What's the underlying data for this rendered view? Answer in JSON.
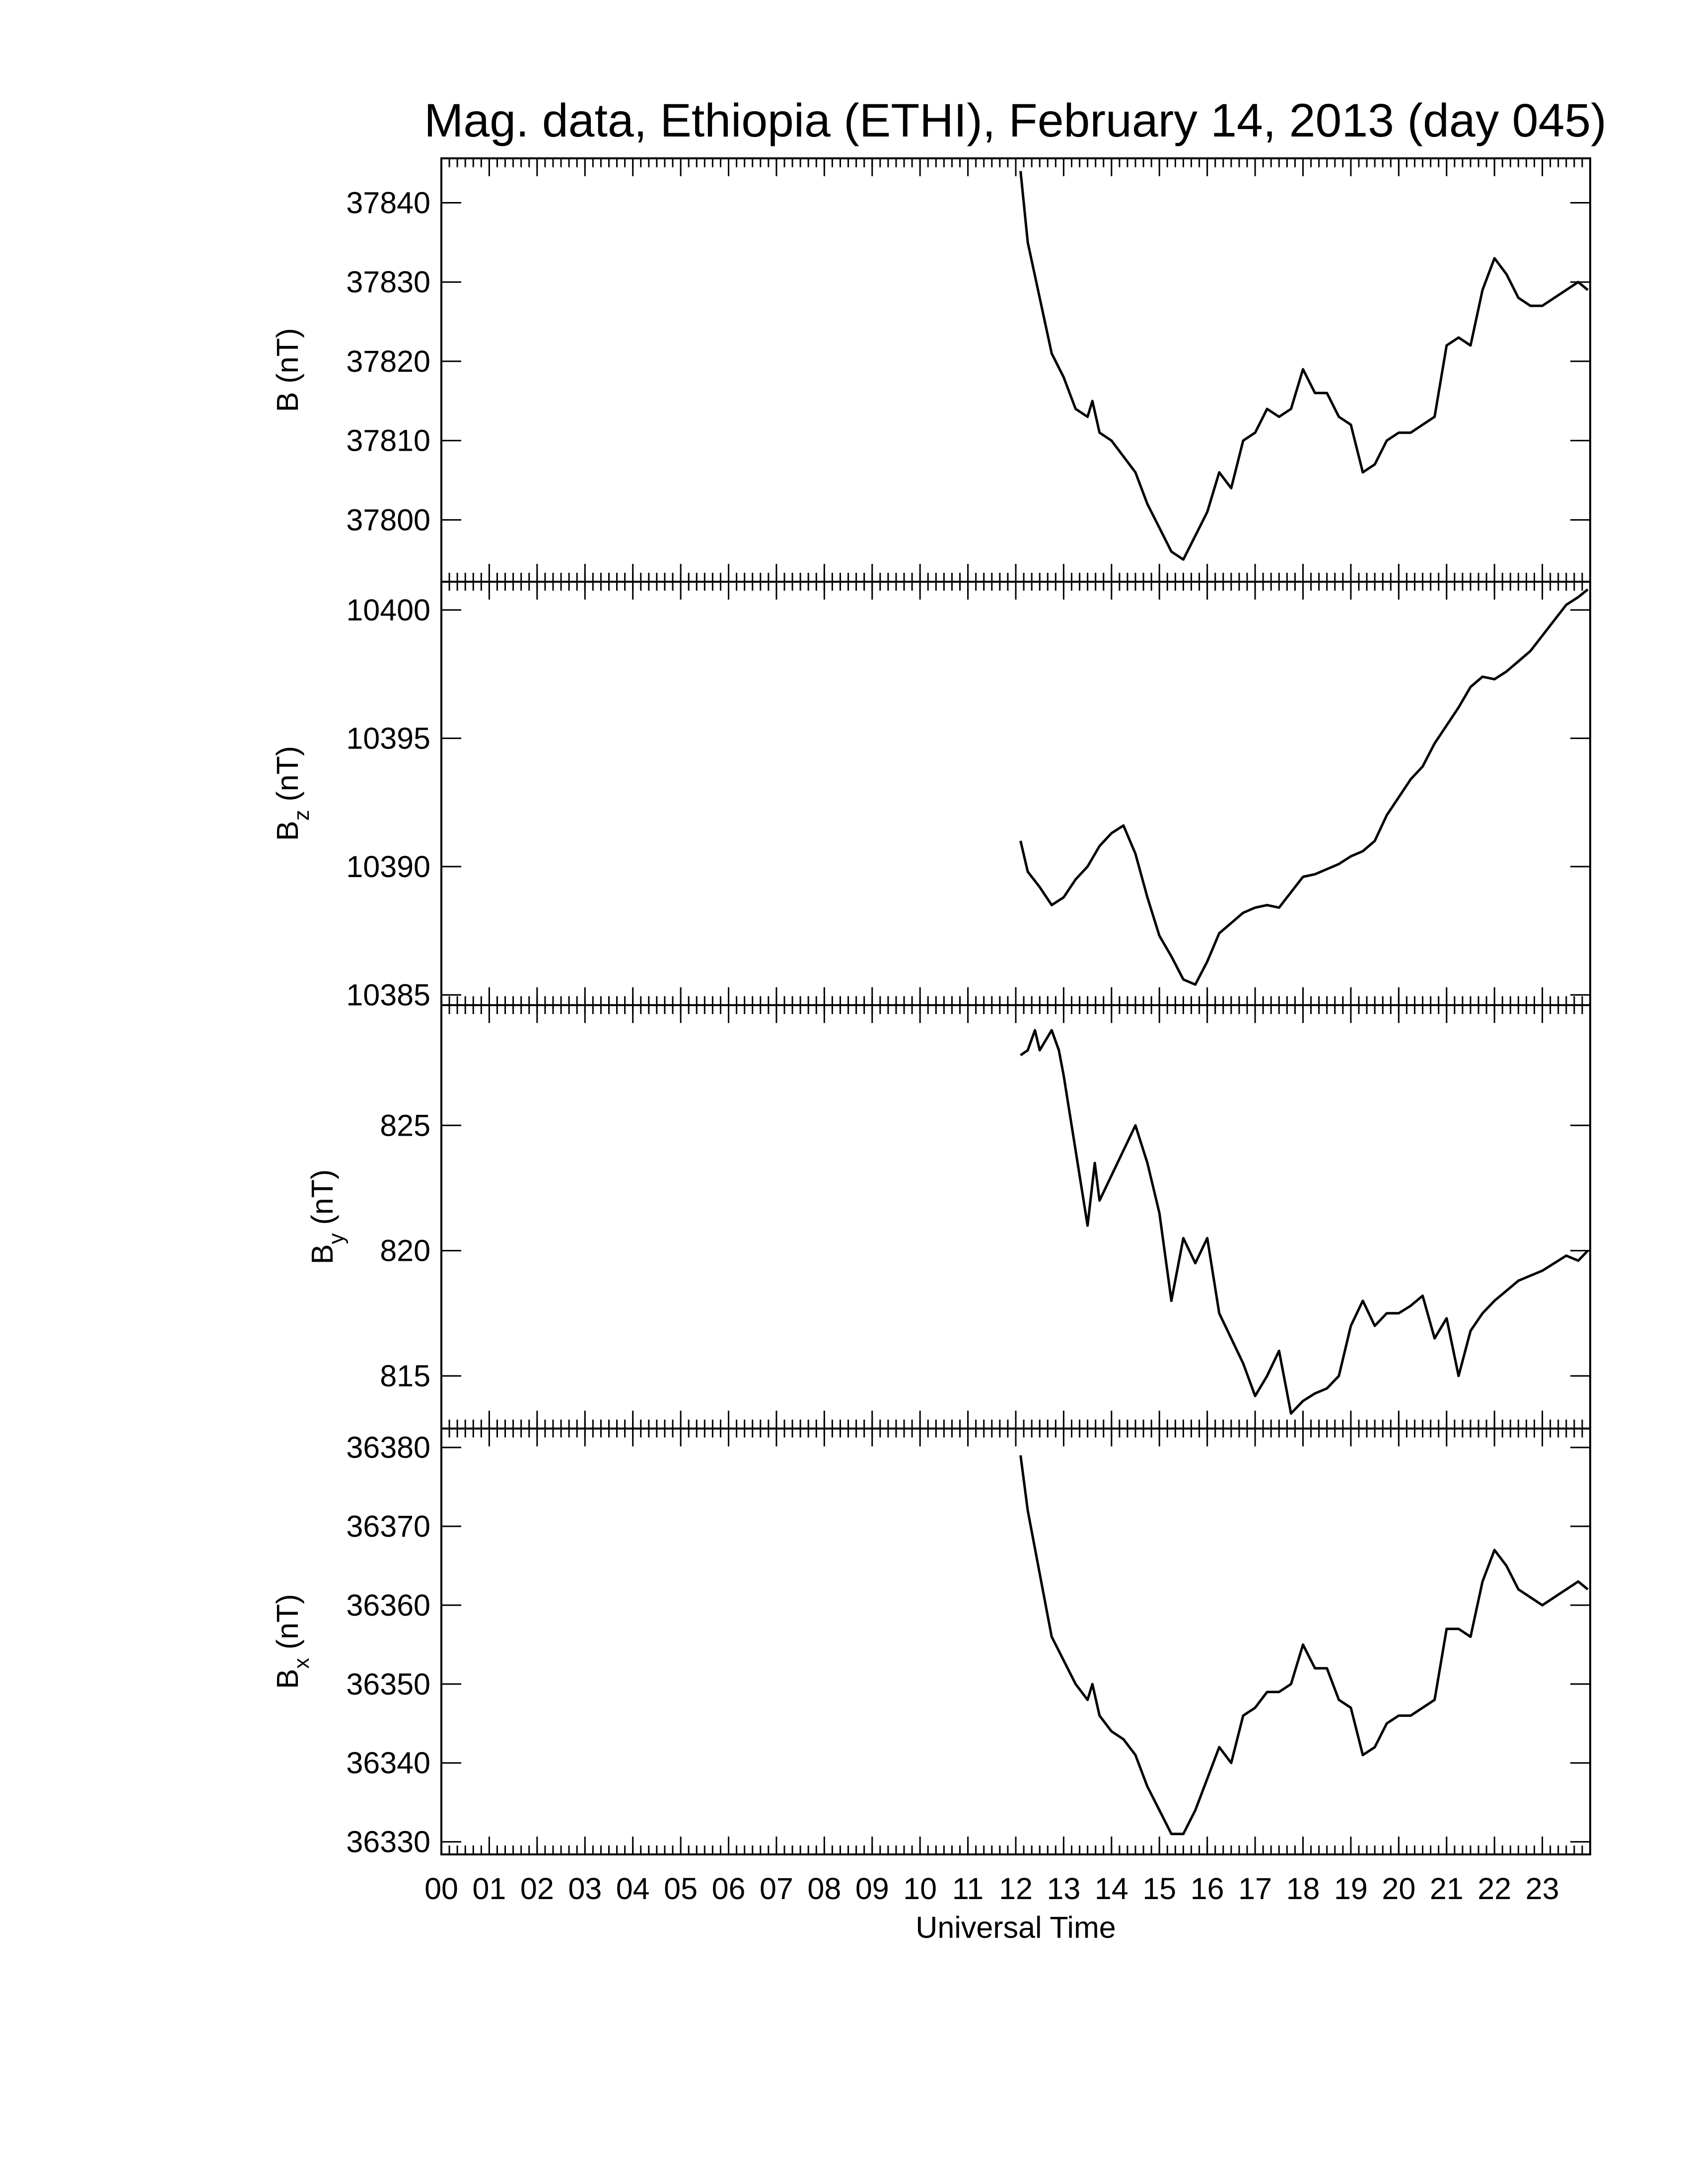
{
  "chart_data": [
    {
      "type": "line",
      "title": "Mag. data, Ethiopia (ETHI), February 14, 2013 (day 045)",
      "ylabel": {
        "symbol": "B",
        "unit": "(nT)"
      },
      "color": "#000000",
      "xlim": [
        0,
        24
      ],
      "xticks": [
        0,
        1,
        2,
        3,
        4,
        5,
        6,
        7,
        8,
        9,
        10,
        11,
        12,
        13,
        14,
        15,
        16,
        17,
        18,
        19,
        20,
        21,
        22,
        23
      ],
      "ylim": [
        37792.2,
        37845.6
      ],
      "yticks": [
        37800,
        37810,
        37820,
        37830,
        37840
      ],
      "x": [
        12.1,
        12.25,
        12.5,
        12.75,
        13.0,
        13.25,
        13.5,
        13.6,
        13.75,
        14.0,
        14.25,
        14.5,
        14.75,
        15.0,
        15.25,
        15.5,
        15.75,
        16.0,
        16.25,
        16.5,
        16.75,
        17.0,
        17.25,
        17.5,
        17.75,
        18.0,
        18.25,
        18.5,
        18.75,
        19.0,
        19.25,
        19.5,
        19.75,
        20.0,
        20.25,
        20.5,
        20.75,
        21.0,
        21.25,
        21.5,
        21.75,
        22.0,
        22.25,
        22.5,
        22.75,
        23.0,
        23.25,
        23.5,
        23.75,
        23.95
      ],
      "values": [
        37844,
        37835,
        37828,
        37821,
        37818,
        37814,
        37813,
        37815,
        37811,
        37810,
        37808,
        37806,
        37802,
        37799,
        37796,
        37795,
        37798,
        37801,
        37806,
        37804,
        37810,
        37811,
        37814,
        37813,
        37814,
        37819,
        37816,
        37816,
        37813,
        37812,
        37806,
        37807,
        37810,
        37811,
        37811,
        37812,
        37813,
        37822,
        37823,
        37822,
        37829,
        37833,
        37831,
        37828,
        37827,
        37827,
        37828,
        37829,
        37830,
        37829
      ]
    },
    {
      "type": "line",
      "ylabel": {
        "symbol": "B",
        "subscript": "z",
        "unit": "(nT)"
      },
      "color": "#000000",
      "xlim": [
        0,
        24
      ],
      "xticks": [
        0,
        1,
        2,
        3,
        4,
        5,
        6,
        7,
        8,
        9,
        10,
        11,
        12,
        13,
        14,
        15,
        16,
        17,
        18,
        19,
        20,
        21,
        22,
        23
      ],
      "ylim": [
        10384.6,
        10401.1
      ],
      "yticks": [
        10385,
        10390,
        10395,
        10400
      ],
      "x": [
        12.1,
        12.25,
        12.5,
        12.75,
        13.0,
        13.25,
        13.5,
        13.75,
        14.0,
        14.25,
        14.5,
        14.75,
        15.0,
        15.25,
        15.5,
        15.75,
        16.0,
        16.25,
        16.5,
        16.75,
        17.0,
        17.25,
        17.5,
        17.75,
        18.0,
        18.25,
        18.5,
        18.75,
        19.0,
        19.25,
        19.5,
        19.75,
        20.0,
        20.25,
        20.5,
        20.75,
        21.0,
        21.25,
        21.5,
        21.75,
        22.0,
        22.25,
        22.5,
        22.75,
        23.0,
        23.25,
        23.5,
        23.75,
        23.95
      ],
      "values": [
        10391,
        10389.8,
        10389.2,
        10388.5,
        10388.8,
        10389.5,
        10390.0,
        10390.8,
        10391.3,
        10391.6,
        10390.5,
        10388.8,
        10387.3,
        10386.5,
        10385.6,
        10385.4,
        10386.3,
        10387.4,
        10387.8,
        10388.2,
        10388.4,
        10388.5,
        10388.4,
        10389.0,
        10389.6,
        10389.7,
        10389.9,
        10390.1,
        10390.4,
        10390.6,
        10391.0,
        10392.0,
        10392.7,
        10393.4,
        10393.9,
        10394.8,
        10395.5,
        10396.2,
        10397.0,
        10397.4,
        10397.3,
        10397.6,
        10398.0,
        10398.4,
        10399.0,
        10399.6,
        10400.2,
        10400.5,
        10400.8
      ]
    },
    {
      "type": "line",
      "ylabel": {
        "symbol": "B",
        "subscript": "y",
        "unit": "(nT)"
      },
      "color": "#000000",
      "xlim": [
        0,
        24
      ],
      "xticks": [
        0,
        1,
        2,
        3,
        4,
        5,
        6,
        7,
        8,
        9,
        10,
        11,
        12,
        13,
        14,
        15,
        16,
        17,
        18,
        19,
        20,
        21,
        22,
        23
      ],
      "ylim": [
        812.9,
        829.8
      ],
      "yticks": [
        815,
        820,
        825
      ],
      "x": [
        12.1,
        12.25,
        12.4,
        12.5,
        12.75,
        12.9,
        13.0,
        13.25,
        13.5,
        13.65,
        13.75,
        14.0,
        14.25,
        14.5,
        14.75,
        15.0,
        15.25,
        15.5,
        15.75,
        16.0,
        16.25,
        16.5,
        16.75,
        17.0,
        17.25,
        17.5,
        17.75,
        18.0,
        18.25,
        18.5,
        18.75,
        19.0,
        19.25,
        19.5,
        19.75,
        20.0,
        20.25,
        20.5,
        20.75,
        21.0,
        21.25,
        21.5,
        21.75,
        22.0,
        22.25,
        22.5,
        22.75,
        23.0,
        23.25,
        23.5,
        23.75,
        23.95
      ],
      "values": [
        827.8,
        828.0,
        828.8,
        828.0,
        828.8,
        828.0,
        827.0,
        824.0,
        821.0,
        823.5,
        822.0,
        823.0,
        824.0,
        825.0,
        823.5,
        821.5,
        818.0,
        820.5,
        819.5,
        820.5,
        817.5,
        816.5,
        815.5,
        814.2,
        815.0,
        816.0,
        813.5,
        814.0,
        814.3,
        814.5,
        815.0,
        817.0,
        818.0,
        817.0,
        817.5,
        817.5,
        817.8,
        818.2,
        816.5,
        817.3,
        815.0,
        816.8,
        817.5,
        818.0,
        818.4,
        818.8,
        819.0,
        819.2,
        819.5,
        819.8,
        819.6,
        820.0
      ]
    },
    {
      "type": "line",
      "ylabel": {
        "symbol": "B",
        "subscript": "x",
        "unit": "(nT)"
      },
      "xlabel": "Universal Time",
      "color": "#000000",
      "xlim": [
        0,
        24
      ],
      "xticks": [
        {
          "value": 0,
          "label": "00"
        },
        {
          "value": 1,
          "label": "01"
        },
        {
          "value": 2,
          "label": "02"
        },
        {
          "value": 3,
          "label": "03"
        },
        {
          "value": 4,
          "label": "04"
        },
        {
          "value": 5,
          "label": "05"
        },
        {
          "value": 6,
          "label": "06"
        },
        {
          "value": 7,
          "label": "07"
        },
        {
          "value": 8,
          "label": "08"
        },
        {
          "value": 9,
          "label": "09"
        },
        10,
        11,
        12,
        13,
        14,
        15,
        16,
        17,
        18,
        19,
        20,
        21,
        22,
        23
      ],
      "ylim": [
        36328.4,
        36382.4
      ],
      "yticks": [
        36330,
        36340,
        36350,
        36360,
        36370,
        36380
      ],
      "x": [
        12.1,
        12.25,
        12.5,
        12.75,
        13.0,
        13.25,
        13.5,
        13.6,
        13.75,
        14.0,
        14.25,
        14.5,
        14.75,
        15.0,
        15.25,
        15.5,
        15.75,
        16.0,
        16.25,
        16.5,
        16.75,
        17.0,
        17.25,
        17.5,
        17.75,
        18.0,
        18.25,
        18.5,
        18.75,
        19.0,
        19.25,
        19.5,
        19.75,
        20.0,
        20.25,
        20.5,
        20.75,
        21.0,
        21.25,
        21.5,
        21.75,
        22.0,
        22.25,
        22.5,
        22.75,
        23.0,
        23.25,
        23.5,
        23.75,
        23.95
      ],
      "values": [
        36379,
        36372,
        36364,
        36356,
        36353,
        36350,
        36348,
        36350,
        36346,
        36344,
        36343,
        36341,
        36337,
        36334,
        36331,
        36331,
        36334,
        36338,
        36342,
        36340,
        36346,
        36347,
        36349,
        36349,
        36350,
        36355,
        36352,
        36352,
        36348,
        36347,
        36341,
        36342,
        36345,
        36346,
        36346,
        36347,
        36348,
        36357,
        36357,
        36356,
        36363,
        36367,
        36365,
        36362,
        36361,
        36360,
        36361,
        36362,
        36363,
        36362
      ]
    }
  ]
}
